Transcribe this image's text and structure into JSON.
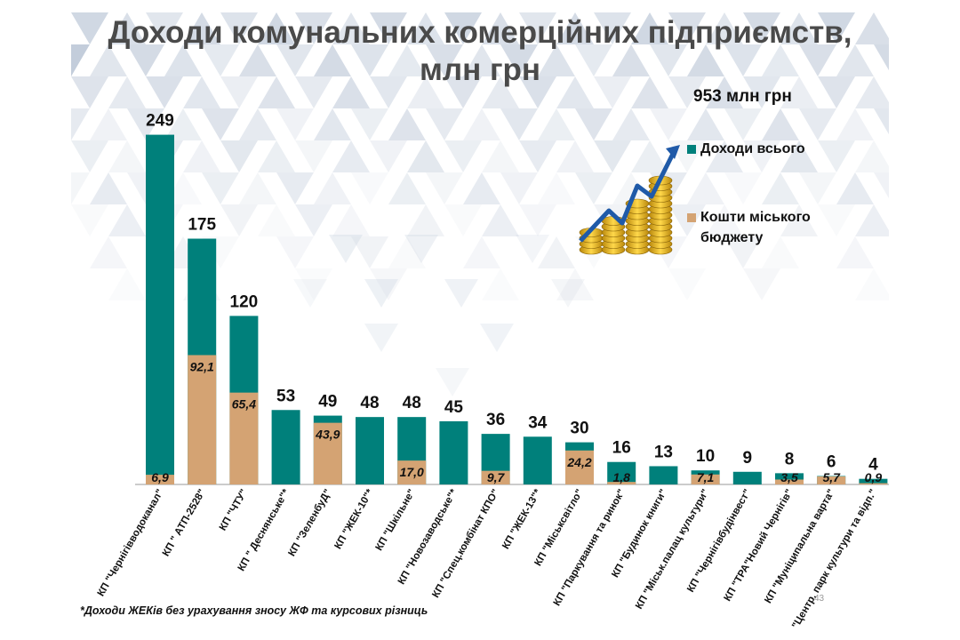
{
  "slide": {
    "title_line1": "Доходи комунальних комерційних підприємств,",
    "title_line2": "млн грн",
    "total": "953 млн грн",
    "footnote": "*Доходи ЖЕКів без урахування зносу ЖФ та курсових різниць",
    "page_number": "43"
  },
  "legend": {
    "income_label": "Доходи всього",
    "budget_label_line1": "Кошти міського",
    "budget_label_line2": "бюджету",
    "income_color": "#00807b",
    "budget_color": "#d4a373"
  },
  "chart_data": {
    "type": "bar",
    "title": "Доходи комунальних комерційних підприємств, млн грн",
    "categories": [
      "КП \"Чернігівводоканал\"",
      "КП \" АТП-2528\"",
      "КП \"ЧТУ\"",
      "КП \" Деснянське\"*",
      "КП \"ЗеленбуД\"",
      "КП \"ЖЕК-10\"*",
      "КП \"Шкільне\"",
      "КП \"Новозаводське\"*",
      "КП \"Спец.комбінат КПО\"",
      "КП \"ЖЕК-13\"*",
      "КП \"Міськсвітло\"",
      "КП \"Паркування та ринок\"",
      "КП \"Будинок книги\"",
      "КП \"Міськ.палац культури\"",
      "КП \"Чернігівбудінвест\"",
      "КП \"ТРА\"Новий Чернігів\"",
      "КП \"Муніципальна варта\"",
      "КП \"Центр. парк культури та відп.\""
    ],
    "series": [
      {
        "name": "Доходи всього",
        "values": [
          249,
          175,
          120,
          53,
          49,
          48,
          48,
          45,
          36,
          34,
          30,
          16,
          13,
          10,
          9,
          8,
          6,
          4
        ],
        "labels": [
          "249",
          "175",
          "120",
          "53",
          "49",
          "48",
          "48",
          "45",
          "36",
          "34",
          "30",
          "16",
          "13",
          "10",
          "9",
          "8",
          "6",
          "4"
        ]
      },
      {
        "name": "Кошти міського бюджету",
        "values": [
          6.9,
          92.1,
          65.4,
          null,
          43.9,
          null,
          17.0,
          null,
          9.7,
          null,
          24.2,
          1.8,
          null,
          7.1,
          null,
          3.5,
          5.7,
          0.9
        ],
        "labels": [
          "6,9",
          "92,1",
          "65,4",
          "",
          "43,9",
          "",
          "17,0",
          "",
          "9,7",
          "",
          "24,2",
          "1,8",
          "",
          "7,1",
          "",
          "3,5",
          "5,7",
          "0,9"
        ]
      }
    ],
    "ylim": [
      0,
      270
    ],
    "grid": false,
    "legend_position": "right"
  }
}
